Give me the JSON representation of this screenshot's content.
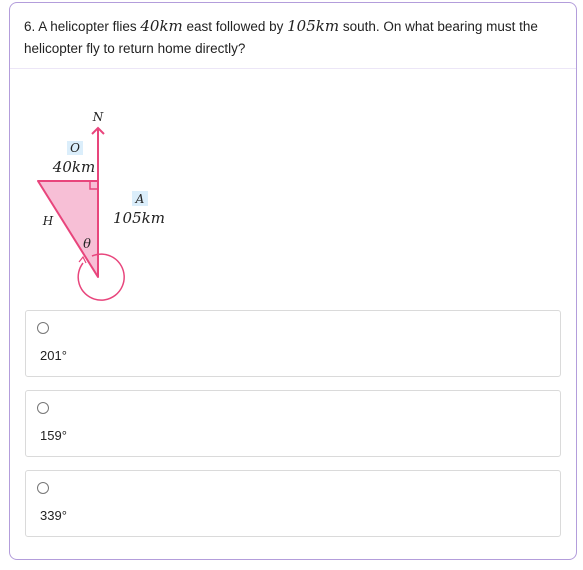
{
  "question": {
    "number": "6.",
    "part1": "A helicopter flies",
    "dist1": "40km",
    "part2": "east followed by",
    "dist2": "105km",
    "part3": "south. On what bearing must the helicopter fly to return home directly?"
  },
  "diagram": {
    "north_label": "N",
    "opposite_label": "O",
    "top_side": "40km",
    "hypotenuse_label": "H",
    "adjacent_label": "A",
    "right_side": "105km",
    "angle_label": "θ",
    "colors": {
      "stroke": "#e8457c",
      "fill": "#f7bfd6",
      "label_bg": "#dbeefb"
    }
  },
  "options": [
    {
      "value": "201°"
    },
    {
      "value": "159°"
    },
    {
      "value": "339°"
    }
  ]
}
